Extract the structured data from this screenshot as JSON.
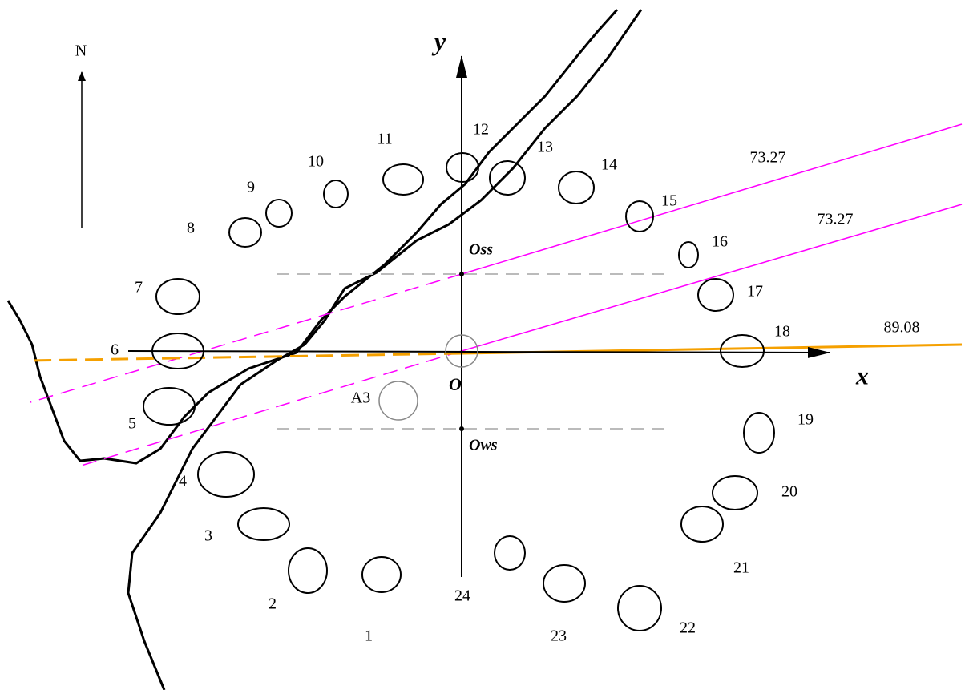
{
  "compass": "N",
  "axes": {
    "x": "x",
    "y": "y",
    "origin": "O"
  },
  "points": {
    "oss": "Oss",
    "ows": "Ows"
  },
  "stone_a3": "A3",
  "stones": [
    "1",
    "2",
    "3",
    "4",
    "5",
    "6",
    "7",
    "8",
    "9",
    "10",
    "11",
    "12",
    "13",
    "14",
    "15",
    "16",
    "17",
    "18",
    "19",
    "20",
    "21",
    "22",
    "23",
    "24"
  ],
  "line_labels": [
    73.27,
    73.27,
    89.08
  ]
}
